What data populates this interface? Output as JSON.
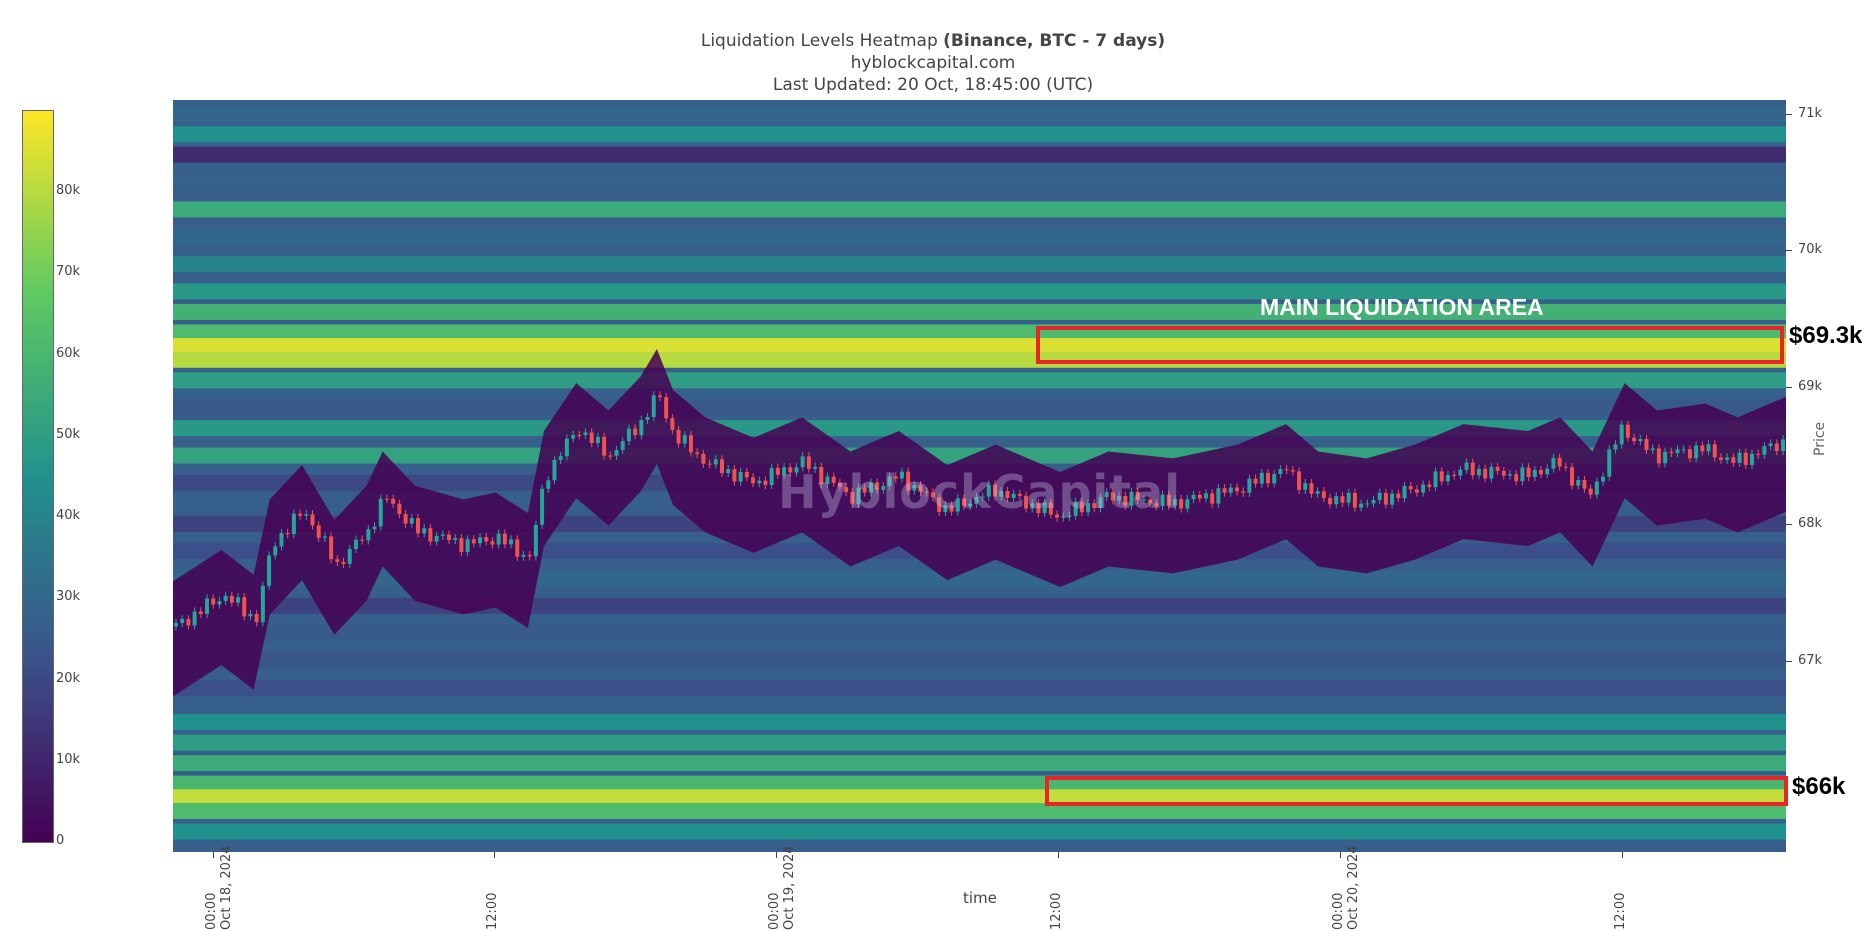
{
  "header": {
    "title_main": "Liquidation Levels Heatmap ",
    "title_bold": "(Binance, BTC - 7 days)",
    "subtitle": "hyblockcapital.com",
    "updated": "Last Updated: 20 Oct, 18:45:00 (UTC)"
  },
  "watermark": "HyblockCapital",
  "annotations": {
    "main_area": "MAIN LIQUIDATION AREA",
    "upper_price": "$69.3k",
    "lower_price": "$66k"
  },
  "colors": {
    "highlight_box": "#e8262a",
    "candle_up": "#26a69a",
    "candle_down": "#ef5350",
    "annotation_text": "#ffffff",
    "price_label": "#000000"
  },
  "chart_data": {
    "type": "heatmap",
    "title": "Liquidation Levels Heatmap (Binance, BTC - 7 days)",
    "xlabel": "time",
    "ylabel": "Price",
    "ylim": [
      65600,
      71100
    ],
    "y_ticks": [
      "71k",
      "70k",
      "69k",
      "68k",
      "67k"
    ],
    "x_ticks": [
      {
        "label": "00:00\nOct 18, 2024"
      },
      {
        "label": "12:00"
      },
      {
        "label": "00:00\nOct 19, 2024"
      },
      {
        "label": "12:00"
      },
      {
        "label": "00:00\nOct 20, 2024"
      },
      {
        "label": "12:00"
      }
    ],
    "colorbar": {
      "ticks": [
        "0",
        "10k",
        "20k",
        "30k",
        "40k",
        "50k",
        "60k",
        "70k",
        "80k"
      ],
      "max": 90000
    },
    "bands": [
      {
        "price": 71000,
        "value": 30000
      },
      {
        "price": 70850,
        "value": 45000
      },
      {
        "price": 70700,
        "value": 12000
      },
      {
        "price": 70500,
        "value": 28000
      },
      {
        "price": 70300,
        "value": 55000
      },
      {
        "price": 70100,
        "value": 30000
      },
      {
        "price": 69900,
        "value": 40000
      },
      {
        "price": 69700,
        "value": 48000
      },
      {
        "price": 69550,
        "value": 58000
      },
      {
        "price": 69400,
        "value": 62000
      },
      {
        "price": 69300,
        "value": 85000
      },
      {
        "price": 69200,
        "value": 80000
      },
      {
        "price": 69050,
        "value": 50000
      },
      {
        "price": 68850,
        "value": 25000
      },
      {
        "price": 68700,
        "value": 48000
      },
      {
        "price": 68500,
        "value": 52000
      },
      {
        "price": 68300,
        "value": 20000
      },
      {
        "price": 68000,
        "value": 18000
      },
      {
        "price": 67800,
        "value": 22000
      },
      {
        "price": 67600,
        "value": 30000
      },
      {
        "price": 67400,
        "value": 18000
      },
      {
        "price": 67200,
        "value": 26000
      },
      {
        "price": 67000,
        "value": 24000
      },
      {
        "price": 66800,
        "value": 22000
      },
      {
        "price": 66550,
        "value": 45000
      },
      {
        "price": 66400,
        "value": 50000
      },
      {
        "price": 66250,
        "value": 55000
      },
      {
        "price": 66100,
        "value": 60000
      },
      {
        "price": 66000,
        "value": 82000
      },
      {
        "price": 65900,
        "value": 62000
      },
      {
        "price": 65750,
        "value": 45000
      }
    ],
    "price_series": [
      {
        "t": 0,
        "p": 67250
      },
      {
        "t": 0.03,
        "p": 67480
      },
      {
        "t": 0.05,
        "p": 67300
      },
      {
        "t": 0.06,
        "p": 67850
      },
      {
        "t": 0.08,
        "p": 68100
      },
      {
        "t": 0.1,
        "p": 67700
      },
      {
        "t": 0.12,
        "p": 67950
      },
      {
        "t": 0.13,
        "p": 68200
      },
      {
        "t": 0.15,
        "p": 67950
      },
      {
        "t": 0.18,
        "p": 67850
      },
      {
        "t": 0.2,
        "p": 67900
      },
      {
        "t": 0.22,
        "p": 67750
      },
      {
        "t": 0.23,
        "p": 68350
      },
      {
        "t": 0.25,
        "p": 68700
      },
      {
        "t": 0.27,
        "p": 68500
      },
      {
        "t": 0.29,
        "p": 68750
      },
      {
        "t": 0.3,
        "p": 68950
      },
      {
        "t": 0.31,
        "p": 68650
      },
      {
        "t": 0.33,
        "p": 68450
      },
      {
        "t": 0.36,
        "p": 68300
      },
      {
        "t": 0.39,
        "p": 68450
      },
      {
        "t": 0.42,
        "p": 68200
      },
      {
        "t": 0.45,
        "p": 68350
      },
      {
        "t": 0.48,
        "p": 68100
      },
      {
        "t": 0.51,
        "p": 68250
      },
      {
        "t": 0.53,
        "p": 68150
      },
      {
        "t": 0.55,
        "p": 68050
      },
      {
        "t": 0.58,
        "p": 68200
      },
      {
        "t": 0.62,
        "p": 68150
      },
      {
        "t": 0.66,
        "p": 68250
      },
      {
        "t": 0.69,
        "p": 68400
      },
      {
        "t": 0.71,
        "p": 68200
      },
      {
        "t": 0.74,
        "p": 68150
      },
      {
        "t": 0.77,
        "p": 68250
      },
      {
        "t": 0.8,
        "p": 68400
      },
      {
        "t": 0.84,
        "p": 68350
      },
      {
        "t": 0.86,
        "p": 68450
      },
      {
        "t": 0.88,
        "p": 68200
      },
      {
        "t": 0.9,
        "p": 68700
      },
      {
        "t": 0.92,
        "p": 68500
      },
      {
        "t": 0.95,
        "p": 68550
      },
      {
        "t": 0.97,
        "p": 68450
      },
      {
        "t": 1.0,
        "p": 68600
      }
    ]
  }
}
